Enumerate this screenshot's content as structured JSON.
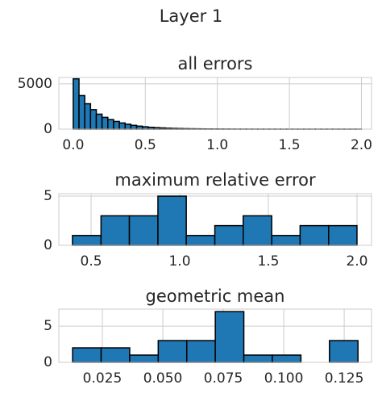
{
  "title": "Layer 1",
  "chart_data": [
    {
      "type": "histogram",
      "title": "all errors",
      "color": "#1f77b4",
      "edgecolor": "#000000",
      "grid": true,
      "bins": [
        0,
        0.04,
        0.08,
        0.12,
        0.16,
        0.2,
        0.24,
        0.28,
        0.32,
        0.36,
        0.4,
        0.44,
        0.48,
        0.52,
        0.56,
        0.6,
        0.64,
        0.68,
        0.72,
        0.76,
        0.8,
        0.84,
        0.88,
        0.92,
        0.96,
        1,
        1.04,
        1.08,
        1.12,
        1.16,
        1.2,
        1.24,
        1.28,
        1.32,
        1.36,
        1.4,
        1.44,
        1.48,
        1.52,
        1.56,
        1.6,
        1.64,
        1.68,
        1.72,
        1.76,
        1.8,
        1.84,
        1.88,
        1.92,
        1.96,
        2
      ],
      "values": [
        5550,
        3700,
        2800,
        2150,
        1650,
        1300,
        1050,
        850,
        680,
        540,
        420,
        330,
        260,
        200,
        160,
        130,
        100,
        80,
        65,
        50,
        40,
        32,
        25,
        20,
        16,
        13,
        10,
        8,
        6,
        5,
        4,
        3,
        3,
        2,
        2,
        2,
        1,
        1,
        1,
        1,
        1,
        1,
        1,
        1,
        1,
        1,
        1,
        1,
        1,
        1
      ],
      "xlim": [
        -0.1,
        2.07
      ],
      "ylim": [
        0,
        5700
      ],
      "xticks": [
        {
          "value": 0,
          "label": "0.0"
        },
        0.5,
        {
          "value": 1,
          "label": "1.0"
        },
        1.5,
        {
          "value": 2,
          "label": "2.0"
        }
      ],
      "yticks": [
        0,
        5000
      ]
    },
    {
      "type": "histogram",
      "title": "maximum relative error",
      "color": "#1f77b4",
      "edgecolor": "#000000",
      "grid": true,
      "bins": [
        0.395,
        0.556,
        0.716,
        0.877,
        1.037,
        1.198,
        1.358,
        1.519,
        1.679,
        1.84,
        2.0
      ],
      "values": [
        1,
        3,
        3,
        5,
        1,
        2,
        3,
        1,
        2,
        2
      ],
      "xlim": [
        0.318,
        2.082
      ],
      "ylim": [
        0,
        5.25
      ],
      "xticks": [
        0.5,
        {
          "value": 1,
          "label": "1.0"
        },
        1.5,
        {
          "value": 2,
          "label": "2.0"
        }
      ],
      "yticks": [
        0,
        5
      ]
    },
    {
      "type": "histogram",
      "title": "geometric mean",
      "color": "#1f77b4",
      "edgecolor": "#000000",
      "grid": true,
      "bins": [
        0.0127,
        0.0245,
        0.0363,
        0.0481,
        0.0599,
        0.0717,
        0.0835,
        0.0953,
        0.1071,
        0.1189,
        0.1307
      ],
      "values": [
        2,
        2,
        1,
        3,
        3,
        7,
        1,
        1,
        0,
        3
      ],
      "xlim": [
        0.007,
        0.1363
      ],
      "ylim": [
        0,
        7.35
      ],
      "xticks": [
        0.025,
        {
          "value": 0.05,
          "label": "0.050"
        },
        0.075,
        {
          "value": 0.1,
          "label": "0.100"
        },
        0.125
      ],
      "yticks": [
        0,
        5
      ]
    }
  ]
}
